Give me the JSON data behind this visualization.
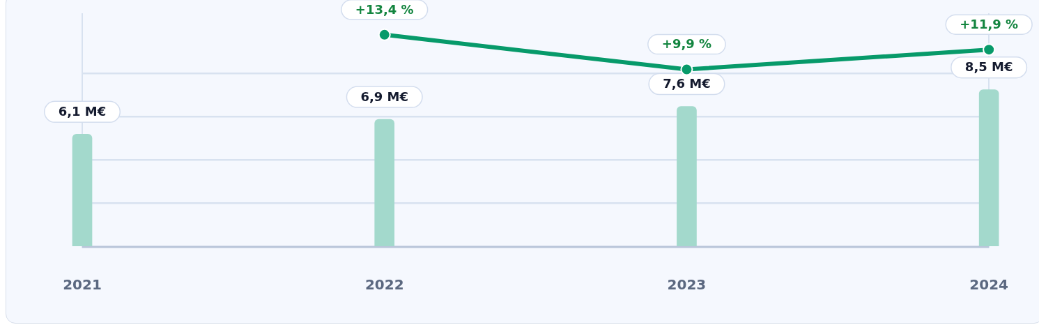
{
  "chart_data": {
    "type": "bar",
    "categories": [
      "2021",
      "2022",
      "2023",
      "2024"
    ],
    "series": [
      {
        "color": "#a3d9cc",
        "values": [
          6.1,
          6.9,
          7.6,
          8.5
        ],
        "value_labels": [
          "6,1 M€",
          "6,9 M€",
          "7,6 M€",
          "8,5 M€"
        ]
      },
      {
        "type": "line",
        "axis": "y2",
        "color": "#079a6a",
        "values": [
          null,
          13.4,
          9.9,
          11.9
        ],
        "value_labels": [
          null,
          "+13,4 %",
          "+9,9 %",
          "+11,9 %"
        ]
      }
    ],
    "ylim": [
      0,
      12.6
    ],
    "yticks": [
      {
        "value": 0,
        "label": null
      },
      {
        "value": 2.35,
        "label": null
      },
      {
        "value": 4.7,
        "label": null
      },
      {
        "value": 7.05,
        "label": null
      },
      {
        "value": 9.4,
        "label": null
      }
    ],
    "y2lim": [
      -8,
      15.5
    ],
    "grid": "y",
    "legend": false,
    "tick_labels": "x",
    "marker": "circle",
    "line_style": "solid"
  }
}
